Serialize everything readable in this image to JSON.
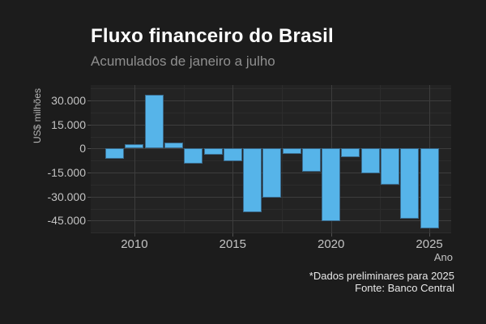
{
  "chart_data": {
    "type": "bar",
    "title": "Fluxo financeiro do Brasil",
    "subtitle": "Acumulados de janeiro a julho",
    "xlabel": "Ano",
    "ylabel": "US$ milhões",
    "x": [
      2009,
      2010,
      2011,
      2012,
      2013,
      2014,
      2015,
      2016,
      2017,
      2018,
      2019,
      2020,
      2021,
      2022,
      2023,
      2024,
      2025
    ],
    "values": [
      -6500,
      3000,
      33500,
      4000,
      -9500,
      -4000,
      -8000,
      -40000,
      -30500,
      -3500,
      -14500,
      -45500,
      -5500,
      -15500,
      -22500,
      -44000,
      -50000
    ],
    "series_unit": "US$ milhões",
    "xlim": [
      2007.78,
      2026.11
    ],
    "ylim": [
      -52900,
      39650
    ],
    "grid": true,
    "legend": "none",
    "yticks": {
      "values": [
        30000,
        15000,
        0,
        -15000,
        -30000,
        -45000
      ],
      "labels": [
        "30.000",
        "15.000",
        "0",
        "-15.000",
        "-30.000",
        "-45.000"
      ]
    },
    "yticks_minor": [
      37500,
      22500,
      7500,
      -7500,
      -22500,
      -37500,
      -52500
    ],
    "xticks": {
      "values": [
        2010,
        2015,
        2020,
        2025
      ],
      "labels": [
        "2010",
        "2015",
        "2020",
        "2025"
      ]
    },
    "xticks_minor": [
      2012.5,
      2017.5,
      2022.5
    ],
    "footnotes": [
      "*Dados preliminares para 2025",
      "Fonte: Banco Central"
    ],
    "colors": {
      "background": "#1c1c1c",
      "panel_background": "#232323",
      "bar_fill": "#56b4e9",
      "bar_border": "#3a6a8c",
      "grid_major": "#3d3d3d",
      "grid_minor": "#2c2c2c",
      "title_text": "#ffffff",
      "subtitle_text": "#8f8f8f",
      "tick_text": "#c3c3c3",
      "footnote_text": "#e8e8e8"
    }
  }
}
